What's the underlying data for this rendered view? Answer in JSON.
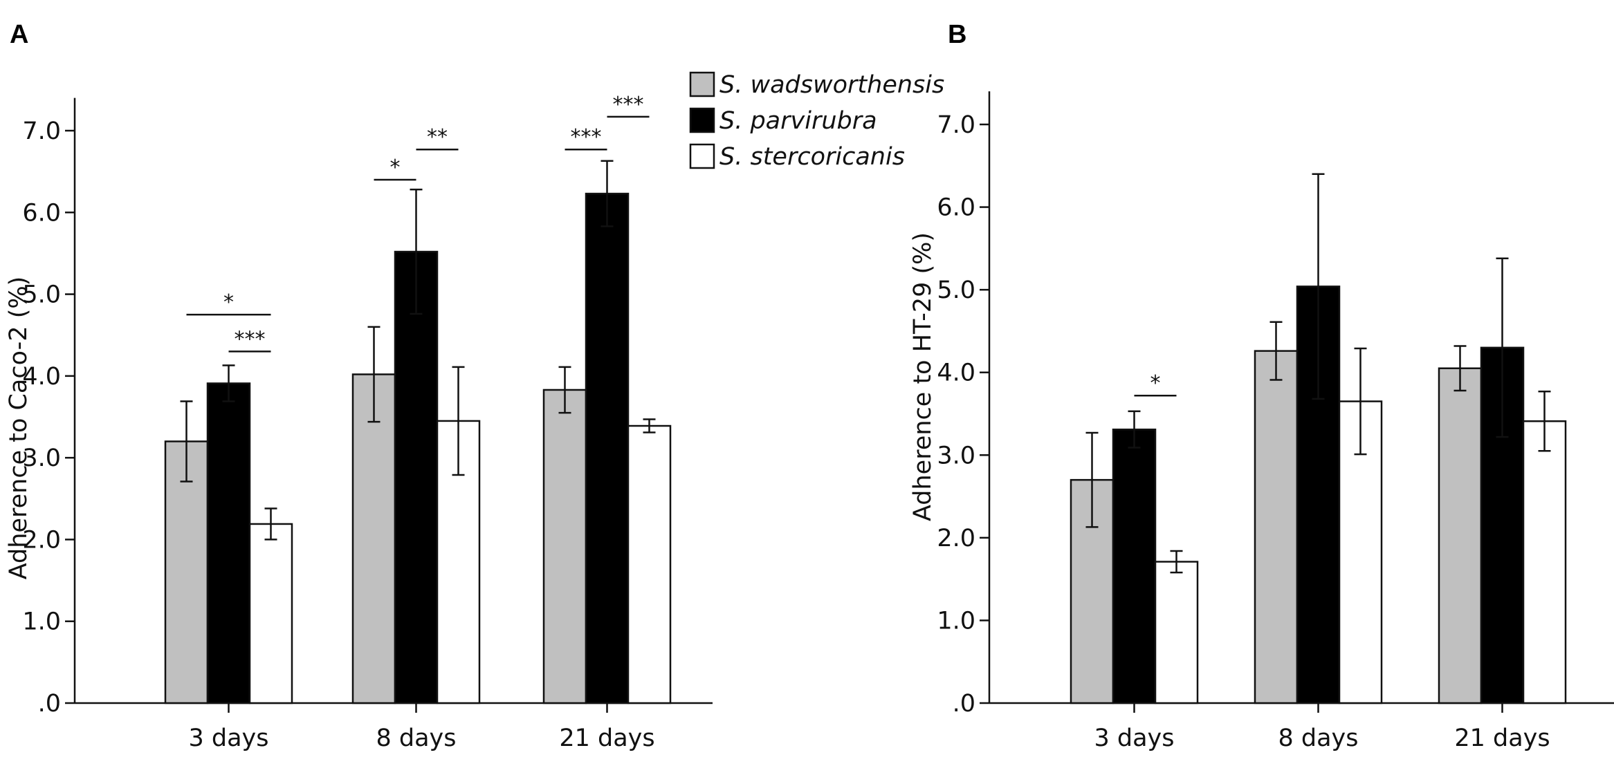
{
  "chart_data": [
    {
      "panel": "A",
      "type": "bar",
      "ylabel": "Adherence to Caco-2 (%)",
      "xlabel": "",
      "ylim": [
        0,
        7.4
      ],
      "yticks": [
        0,
        1,
        2,
        3,
        4,
        5,
        6,
        7
      ],
      "ytick_labels": [
        ".0",
        "1.0",
        "2.0",
        "3.0",
        "4.0",
        "5.0",
        "6.0",
        "7.0"
      ],
      "categories": [
        "3 days",
        "8 days",
        "21 days"
      ],
      "series": [
        {
          "name": "S. wadsworthensis",
          "color": "#c0c0c0",
          "values": [
            3.2,
            4.02,
            3.83
          ],
          "errors": [
            0.49,
            0.58,
            0.28
          ]
        },
        {
          "name": "S. parvirubra",
          "color": "#000000",
          "values": [
            3.91,
            5.52,
            6.23
          ],
          "errors": [
            0.22,
            0.76,
            0.4
          ]
        },
        {
          "name": "S. stercoricanis",
          "color": "#ffffff",
          "values": [
            2.19,
            3.45,
            3.39
          ],
          "errors": [
            0.19,
            0.66,
            0.08
          ]
        }
      ],
      "significance": [
        {
          "category": 0,
          "from": 0,
          "to": 2,
          "y": 4.75,
          "label": "*"
        },
        {
          "category": 0,
          "from": 1,
          "to": 2,
          "y": 4.3,
          "label": "***"
        },
        {
          "category": 1,
          "from": 0,
          "to": 1,
          "y": 6.4,
          "label": "*"
        },
        {
          "category": 1,
          "from": 1,
          "to": 2,
          "y": 6.77,
          "label": "**"
        },
        {
          "category": 2,
          "from": 0,
          "to": 1,
          "y": 6.77,
          "label": "***"
        },
        {
          "category": 2,
          "from": 1,
          "to": 2,
          "y": 7.17,
          "label": "***"
        }
      ]
    },
    {
      "panel": "B",
      "type": "bar",
      "ylabel": "Adherence to HT-29 (%)",
      "xlabel": "",
      "ylim": [
        0,
        7.4
      ],
      "yticks": [
        0,
        1,
        2,
        3,
        4,
        5,
        6,
        7
      ],
      "ytick_labels": [
        ".0",
        "1.0",
        "2.0",
        "3.0",
        "4.0",
        "5.0",
        "6.0",
        "7.0"
      ],
      "categories": [
        "3 days",
        "8 days",
        "21 days"
      ],
      "series": [
        {
          "name": "S. wadsworthensis",
          "color": "#c0c0c0",
          "values": [
            2.7,
            4.26,
            4.05
          ],
          "errors": [
            0.57,
            0.35,
            0.27
          ]
        },
        {
          "name": "S. parvirubra",
          "color": "#000000",
          "values": [
            3.31,
            5.04,
            4.3
          ],
          "errors": [
            0.22,
            1.36,
            1.08
          ]
        },
        {
          "name": "S. stercoricanis",
          "color": "#ffffff",
          "values": [
            1.71,
            3.65,
            3.41
          ],
          "errors": [
            0.13,
            0.64,
            0.36
          ]
        }
      ],
      "significance": [
        {
          "category": 0,
          "from": 1,
          "to": 2,
          "y": 3.72,
          "label": "*"
        }
      ]
    }
  ],
  "legend": {
    "placement": "top-center",
    "items": [
      {
        "name": "S. wadsworthensis",
        "color": "#c0c0c0"
      },
      {
        "name": "S. parvirubra",
        "color": "#000000"
      },
      {
        "name": "S. stercoricanis",
        "color": "#ffffff"
      }
    ]
  }
}
